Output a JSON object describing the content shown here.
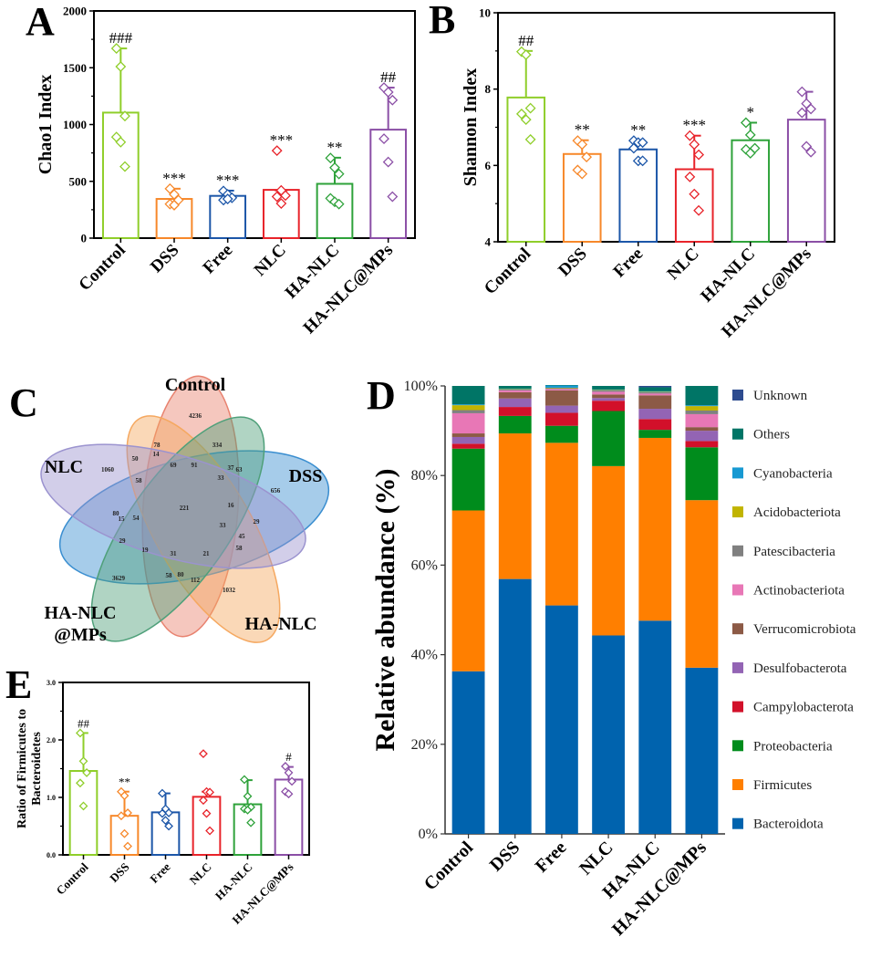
{
  "groups": [
    "Control",
    "DSS",
    "Free",
    "NLC",
    "HA-NLC",
    "HA-NLC@MPs"
  ],
  "group_colors": [
    "#8fce2a",
    "#f7882a",
    "#1c56a8",
    "#e8232a",
    "#2ea23a",
    "#8b4fa6"
  ],
  "chart_data": [
    {
      "panel": "A",
      "type": "bar",
      "ylabel": "Chao1 Index",
      "xlabel": "",
      "categories": [
        "Control",
        "DSS",
        "Free",
        "NLC",
        "HA-NLC",
        "HA-NLC@MPs"
      ],
      "values": [
        1105,
        345,
        372,
        425,
        478,
        955
      ],
      "errors_upper": [
        1670,
        435,
        418,
        420,
        708,
        1325
      ],
      "points": [
        [
          1670,
          1510,
          1075,
          890,
          845,
          630
        ],
        [
          435,
          385,
          335,
          300,
          290
        ],
        [
          415,
          385,
          355,
          335,
          345
        ],
        [
          770,
          420,
          375,
          365,
          305
        ],
        [
          705,
          620,
          565,
          350,
          320,
          300
        ],
        [
          1325,
          1285,
          1215,
          875,
          670,
          365
        ]
      ],
      "significance": [
        "###",
        "***",
        "***",
        "***",
        "**",
        "##"
      ],
      "ylim": [
        0,
        2000
      ],
      "yticks": [
        "0",
        "500",
        "1000",
        "1500",
        "2000"
      ],
      "ytick_values": [
        0,
        500,
        1000,
        1500,
        2000
      ]
    },
    {
      "panel": "B",
      "type": "bar",
      "ylabel": "Shannon Index",
      "xlabel": "",
      "categories": [
        "Control",
        "DSS",
        "Free",
        "NLC",
        "HA-NLC",
        "HA-NLC@MPs"
      ],
      "values": [
        7.78,
        6.3,
        6.42,
        5.9,
        6.66,
        7.2
      ],
      "errors_upper": [
        9.0,
        6.66,
        6.42,
        6.78,
        7.12,
        7.93
      ],
      "points": [
        [
          8.98,
          8.9,
          7.5,
          7.35,
          7.2,
          6.68
        ],
        [
          6.65,
          6.55,
          6.22,
          5.88,
          5.78
        ],
        [
          6.65,
          6.6,
          6.6,
          6.45,
          6.12,
          6.12
        ],
        [
          6.78,
          6.55,
          6.28,
          5.7,
          5.25,
          4.82
        ],
        [
          7.12,
          6.8,
          6.45,
          6.42,
          6.32
        ],
        [
          7.93,
          7.62,
          7.48,
          7.38,
          6.5,
          6.35
        ]
      ],
      "significance": [
        "##",
        "**",
        "**",
        "***",
        "*",
        ""
      ],
      "ylim": [
        4,
        10
      ],
      "yticks": [
        "4",
        "6",
        "8",
        "10"
      ],
      "ytick_values": [
        4,
        6,
        8,
        10
      ]
    },
    {
      "panel": "C",
      "type": "venn",
      "sets": [
        "Control",
        "DSS",
        "HA-NLC",
        "HA-NLC\n@MPs",
        "NLC"
      ],
      "set_labels": [
        "Control",
        "DSS",
        "HA-NLC",
        "HA-NLC",
        "@MPs",
        "NLC"
      ],
      "set_colors": [
        "#e8826f",
        "#3a8ed0",
        "#f5a860",
        "#4fa07a",
        "#9b93cf"
      ],
      "region_counts": [
        "4236",
        "334",
        "63",
        "37",
        "656",
        "33",
        "91",
        "69",
        "78",
        "14",
        "50",
        "1060",
        "58",
        "221",
        "16",
        "29",
        "33",
        "45",
        "58",
        "21",
        "31",
        "19",
        "54",
        "15",
        "80",
        "29",
        "3629",
        "58",
        "80",
        "112",
        "1032"
      ]
    },
    {
      "panel": "D",
      "type": "bar",
      "stacked": true,
      "ylabel": "Relative abundance (%)",
      "xlabel": "",
      "categories": [
        "Control",
        "DSS",
        "Free",
        "NLC",
        "HA-NLC",
        "HA-NLC@MPs"
      ],
      "ylim": [
        0,
        100
      ],
      "yticks": [
        "0%",
        "20%",
        "40%",
        "60%",
        "80%",
        "100%"
      ],
      "ytick_values": [
        0,
        20,
        40,
        60,
        80,
        100
      ],
      "legend_position": "right",
      "series": [
        {
          "name": "Bacteroidota",
          "color": "#0063ae",
          "values": [
            36.3,
            56.9,
            51.0,
            44.3,
            47.6,
            37.1
          ]
        },
        {
          "name": "Firmicutes",
          "color": "#ff7f00",
          "values": [
            35.9,
            32.5,
            36.3,
            37.8,
            40.8,
            37.4
          ]
        },
        {
          "name": "Proteobacteria",
          "color": "#008c1c",
          "values": [
            13.8,
            3.9,
            3.8,
            12.3,
            1.8,
            11.8
          ]
        },
        {
          "name": "Campylobacterota",
          "color": "#d2102a",
          "values": [
            1.1,
            2.0,
            2.9,
            2.3,
            2.4,
            1.4
          ]
        },
        {
          "name": "Desulfobacterota",
          "color": "#9364b4",
          "values": [
            1.5,
            1.9,
            1.6,
            0.6,
            2.3,
            2.3
          ]
        },
        {
          "name": "Verrucomicrobiota",
          "color": "#8c5a46",
          "values": [
            0.8,
            1.4,
            3.4,
            0.8,
            3.0,
            0.8
          ]
        },
        {
          "name": "Actinobacteriota",
          "color": "#e877b6",
          "values": [
            4.5,
            0.4,
            0.3,
            0.6,
            0.4,
            2.9
          ]
        },
        {
          "name": "Patescibacteria",
          "color": "#808080",
          "values": [
            0.7,
            0.2,
            0.2,
            0.3,
            0.3,
            0.8
          ]
        },
        {
          "name": "Acidobacteriota",
          "color": "#c1b400",
          "values": [
            1.1,
            0.1,
            0.1,
            0.1,
            0.1,
            1.0
          ]
        },
        {
          "name": "Cyanobacteria",
          "color": "#1799d2",
          "values": [
            0.2,
            0.1,
            0.5,
            0.1,
            0.1,
            0.2
          ]
        },
        {
          "name": "Others",
          "color": "#007566",
          "values": [
            4.1,
            0.6,
            0.1,
            0.8,
            0.9,
            4.3
          ]
        },
        {
          "name": "Unknown",
          "color": "#2e4c8f",
          "values": [
            0.0,
            0.0,
            0.0,
            0.0,
            0.3,
            0.0
          ]
        }
      ]
    },
    {
      "panel": "E",
      "type": "bar",
      "ylabel": "Ratio of Firmicutes to Bacteroidetes",
      "ylabel_lines": [
        "Ratio of Firmicutes to",
        "Bacteroidetes"
      ],
      "xlabel": "",
      "categories": [
        "Control",
        "DSS",
        "Free",
        "NLC",
        "HA-NLC",
        "HA-NLC@MPs"
      ],
      "values": [
        1.46,
        0.68,
        0.74,
        1.01,
        0.88,
        1.31
      ],
      "errors_upper": [
        2.12,
        1.1,
        1.07,
        1.1,
        1.3,
        1.53
      ],
      "points": [
        [
          2.12,
          1.63,
          1.43,
          1.25,
          0.85
        ],
        [
          1.1,
          1.03,
          0.73,
          0.68,
          0.37,
          0.15
        ],
        [
          1.07,
          0.8,
          0.73,
          0.72,
          0.6,
          0.5
        ],
        [
          1.76,
          1.1,
          1.09,
          0.95,
          0.72,
          0.42
        ],
        [
          1.31,
          1.02,
          0.83,
          0.8,
          0.78,
          0.56
        ],
        [
          1.54,
          1.43,
          1.28,
          1.1,
          1.06
        ]
      ],
      "significance": [
        "##",
        "**",
        "",
        "",
        "",
        "#"
      ],
      "ylim": [
        0,
        3
      ],
      "yticks": [
        "0.0",
        "1.0",
        "2.0",
        "3.0"
      ],
      "ytick_values": [
        0,
        1,
        2,
        3
      ]
    }
  ],
  "panels": {
    "A": "A",
    "B": "B",
    "C": "C",
    "D": "D",
    "E": "E"
  }
}
